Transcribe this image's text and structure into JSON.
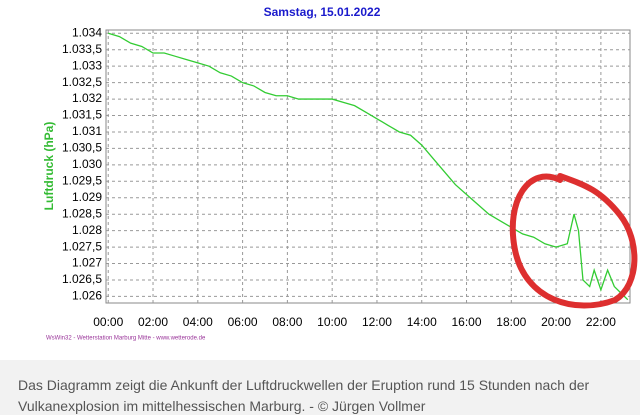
{
  "chart_data": {
    "type": "line",
    "title": "Samstag, 15.01.2022",
    "y_label": "Luftdruck  (hPa)",
    "source": "WsWin32 - Wetterstation Marburg Mitte - www.wetterode.de",
    "x": [
      0,
      0.5,
      1,
      1.5,
      2,
      2.5,
      3,
      3.5,
      4,
      4.5,
      5,
      5.5,
      6,
      6.5,
      7,
      7.5,
      8,
      8.5,
      9,
      9.5,
      10,
      10.5,
      11,
      11.5,
      12,
      12.5,
      13,
      13.5,
      14,
      14.5,
      15,
      15.5,
      16,
      16.5,
      17,
      17.5,
      18,
      18.5,
      19,
      19.5,
      20,
      20.5,
      20.8,
      21,
      21.2,
      21.5,
      21.7,
      22,
      22.3,
      22.6,
      22.9,
      23.2
    ],
    "series": [
      {
        "name": "Luftdruck",
        "color": "#33cc33",
        "values": [
          1.034,
          1.0339,
          1.0337,
          1.0336,
          1.0334,
          1.0334,
          1.0333,
          1.0332,
          1.0331,
          1.033,
          1.0328,
          1.0327,
          1.0325,
          1.0324,
          1.0322,
          1.0321,
          1.0321,
          1.032,
          1.032,
          1.032,
          1.032,
          1.0319,
          1.0318,
          1.0316,
          1.0314,
          1.0312,
          1.031,
          1.0309,
          1.0306,
          1.0302,
          1.0298,
          1.0294,
          1.0291,
          1.0288,
          1.0285,
          1.0283,
          1.0281,
          1.0279,
          1.0278,
          1.0276,
          1.0275,
          1.0276,
          1.0285,
          1.028,
          1.0265,
          1.0263,
          1.0268,
          1.0262,
          1.0268,
          1.0263,
          1.0261,
          1.0259
        ]
      }
    ],
    "xlim": [
      -0.1,
      23.3
    ],
    "ylim": [
      1.0258,
      1.0341
    ],
    "xticks": [
      {
        "value": 0,
        "label": "00:00"
      },
      {
        "value": 2,
        "label": "02:00"
      },
      {
        "value": 4,
        "label": "04:00"
      },
      {
        "value": 6,
        "label": "06:00"
      },
      {
        "value": 8,
        "label": "08:00"
      },
      {
        "value": 10,
        "label": "10:00"
      },
      {
        "value": 12,
        "label": "12:00"
      },
      {
        "value": 14,
        "label": "14:00"
      },
      {
        "value": 16,
        "label": "16:00"
      },
      {
        "value": 18,
        "label": "18:00"
      },
      {
        "value": 20,
        "label": "20:00"
      },
      {
        "value": 22,
        "label": "22:00"
      }
    ],
    "yticks": [
      1.026,
      {
        "value": 1.0265,
        "label": "1.026,5"
      },
      1.027,
      {
        "value": 1.0275,
        "label": "1.027,5"
      },
      1.028,
      {
        "value": 1.0285,
        "label": "1.028,5"
      },
      1.029,
      {
        "value": 1.0295,
        "label": "1.029,5"
      },
      {
        "value": 1.03,
        "label": "1.030"
      },
      {
        "value": 1.0305,
        "label": "1.030,5"
      },
      1.031,
      {
        "value": 1.0315,
        "label": "1.031,5"
      },
      1.032,
      {
        "value": 1.0325,
        "label": "1.032,5"
      },
      1.033,
      {
        "value": 1.0335,
        "label": "1.033,5"
      },
      1.034
    ],
    "grid": true
  },
  "caption": [
    "Das Diagramm zeigt die Ankunft der Luftdruckwellen der Eruption rund 15 Stunden nach der",
    "Vulkanexplosion im mittelhessischen Marburg. - © Jürgen Vollmer"
  ]
}
